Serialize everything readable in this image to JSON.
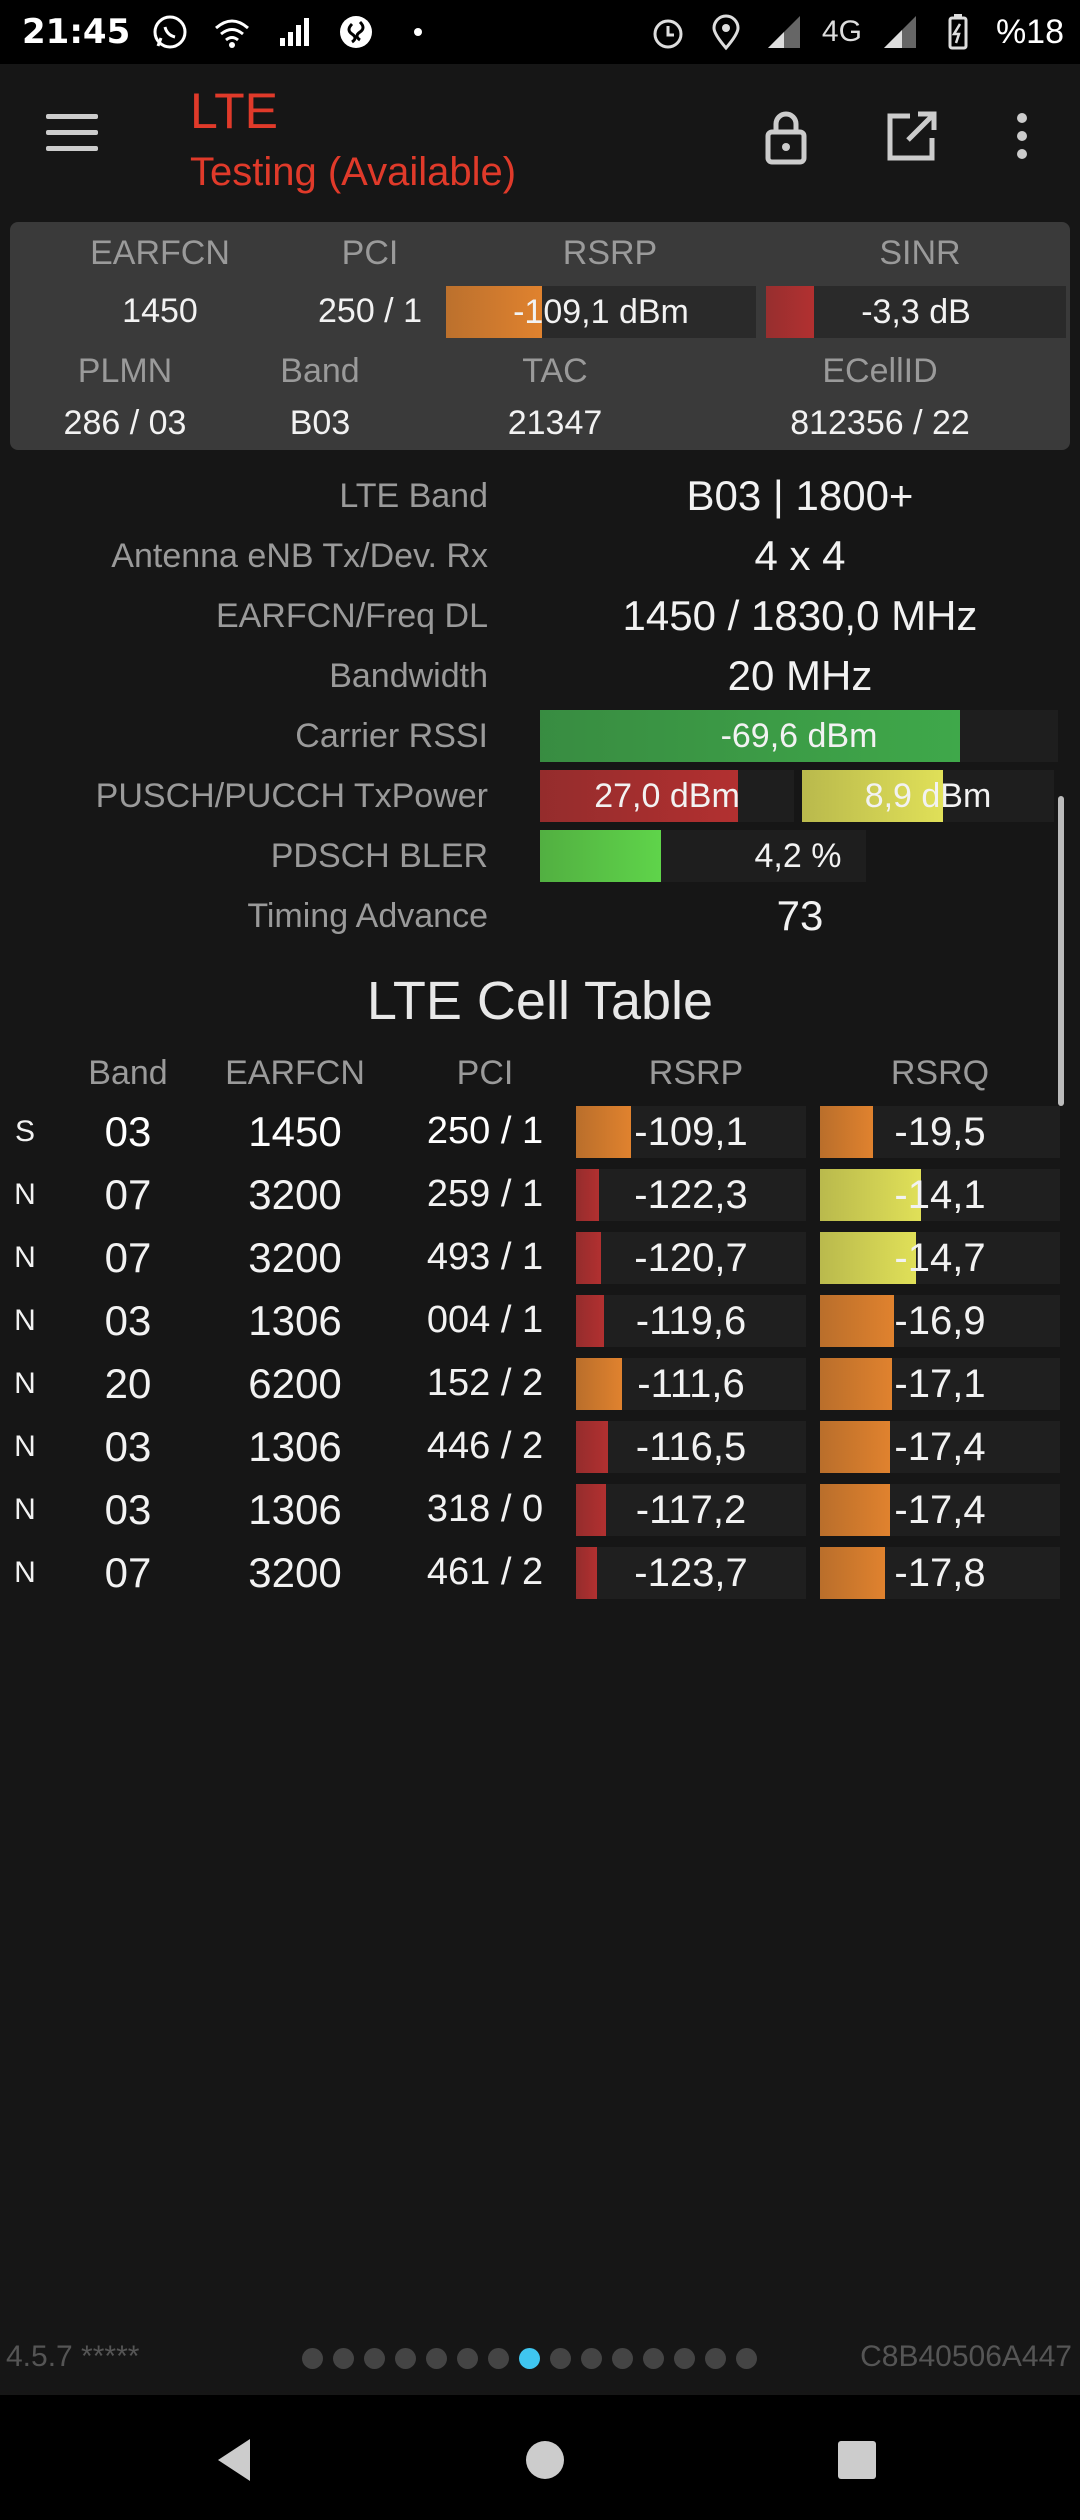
{
  "status_bar": {
    "time": "21:45",
    "network": "4G",
    "battery": "%18",
    "icons_left": [
      "whatsapp-icon",
      "wifi-icon",
      "signal-icon",
      "shazam-icon",
      "dot-icon"
    ],
    "icons_right": [
      "alarm-icon",
      "location-icon",
      "signal-icon",
      "signal-icon",
      "battery-icon"
    ]
  },
  "app_bar": {
    "title": "LTE",
    "subtitle": "Testing (Available)",
    "actions": [
      "lock-icon",
      "open-external-icon",
      "more-vert-icon"
    ]
  },
  "summary": {
    "earfcn_label": "EARFCN",
    "earfcn": "1450",
    "pci_label": "PCI",
    "pci": "250 / 1",
    "rsrp_label": "RSRP",
    "rsrp": "-109,1 dBm",
    "rsrp_level": 0.31,
    "sinr_label": "SINR",
    "sinr": "-3,3 dB",
    "sinr_level": 0.16,
    "plmn_label": "PLMN",
    "plmn": "286 / 03",
    "band_label": "Band",
    "band": "B03",
    "tac_label": "TAC",
    "tac": "21347",
    "ecellid_label": "ECellID",
    "ecellid": "812356 / 22"
  },
  "details": {
    "lte_band_label": "LTE Band",
    "lte_band": "B03 | 1800+",
    "antenna_label": "Antenna eNB Tx/Dev. Rx",
    "antenna": "4 x 4",
    "earfcn_freq_label": "EARFCN/Freq DL",
    "earfcn_freq": "1450 / 1830,0 MHz",
    "bandwidth_label": "Bandwidth",
    "bandwidth": "20 MHz",
    "rssi_label": "Carrier RSSI",
    "rssi": "-69,6 dBm",
    "rssi_level": 0.81,
    "txpower_label": "PUSCH/PUCCH TxPower",
    "pusch": "27,0 dBm",
    "pusch_level": 0.78,
    "pucch": "8,9 dBm",
    "pucch_level": 0.56,
    "bler_label": "PDSCH BLER",
    "bler": "4,2 %",
    "bler_level": 0.37,
    "ta_label": "Timing Advance",
    "ta": "73"
  },
  "cell_table": {
    "title": "LTE Cell Table",
    "headers": {
      "band": "Band",
      "earfcn": "EARFCN",
      "pci": "PCI",
      "rsrp": "RSRP",
      "rsrq": "RSRQ"
    },
    "rows": [
      {
        "type": "S",
        "band": "03",
        "earfcn": "1450",
        "pci": "250 / 1",
        "rsrp": "-109,1",
        "rsrp_level": 0.24,
        "rsrq": "-19,5",
        "rsrq_level": 0.22
      },
      {
        "type": "N",
        "band": "07",
        "earfcn": "3200",
        "pci": "259 / 1",
        "rsrp": "-122,3",
        "rsrp_level": 0.1,
        "rsrq": "-14,1",
        "rsrq_level": 0.42
      },
      {
        "type": "N",
        "band": "07",
        "earfcn": "3200",
        "pci": "493 / 1",
        "rsrp": "-120,7",
        "rsrp_level": 0.11,
        "rsrq": "-14,7",
        "rsrq_level": 0.4
      },
      {
        "type": "N",
        "band": "03",
        "earfcn": "1306",
        "pci": "004 / 1",
        "rsrp": "-119,6",
        "rsrp_level": 0.12,
        "rsrq": "-16,9",
        "rsrq_level": 0.31
      },
      {
        "type": "N",
        "band": "20",
        "earfcn": "6200",
        "pci": "152 / 2",
        "rsrp": "-111,6",
        "rsrp_level": 0.2,
        "rsrq": "-17,1",
        "rsrq_level": 0.3
      },
      {
        "type": "N",
        "band": "03",
        "earfcn": "1306",
        "pci": "446 / 2",
        "rsrp": "-116,5",
        "rsrp_level": 0.14,
        "rsrq": "-17,4",
        "rsrq_level": 0.29
      },
      {
        "type": "N",
        "band": "03",
        "earfcn": "1306",
        "pci": "318 / 0",
        "rsrp": "-117,2",
        "rsrp_level": 0.13,
        "rsrq": "-17,4",
        "rsrq_level": 0.29
      },
      {
        "type": "N",
        "band": "07",
        "earfcn": "3200",
        "pci": "461 / 2",
        "rsrp": "-123,7",
        "rsrp_level": 0.09,
        "rsrq": "-17,8",
        "rsrq_level": 0.27
      }
    ]
  },
  "footer": {
    "version": "4.5.7 *****",
    "device_id": "C8B40506A447",
    "page_count": 15,
    "active_page": 8
  },
  "colors": {
    "accent_red": "#e03a2a",
    "orange": "#e0822e",
    "dark_red": "#b23030",
    "yellow": "#e0e058",
    "green": "#3fa84a",
    "light_green": "#5fd44a",
    "page_indicator_active": "#3fc6f0"
  }
}
